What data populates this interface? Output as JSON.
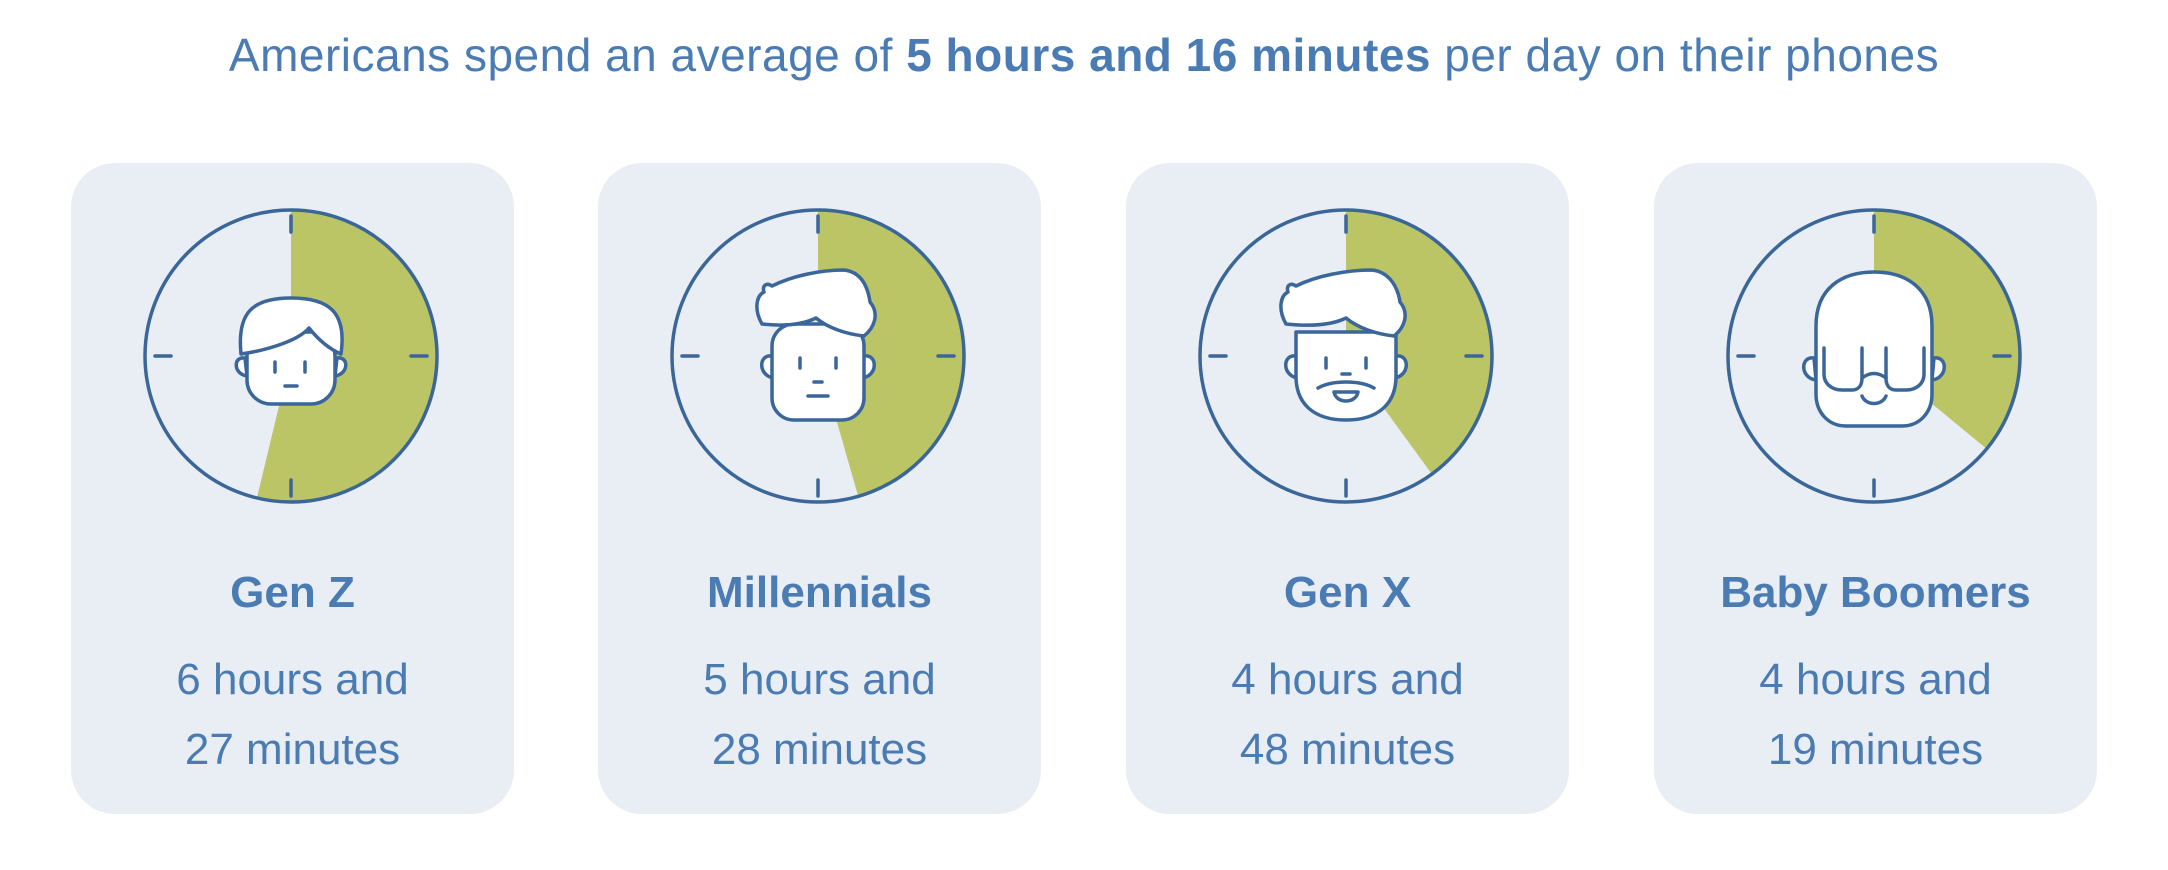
{
  "headline": {
    "prefix": "Americans spend an average of ",
    "bold": "5 hours and 16 minutes",
    "suffix": " per day on their phones"
  },
  "colors": {
    "text": "#4a7bb3",
    "card": "#e8eef4",
    "outline": "#3a6699",
    "wedge": "#bcc565"
  },
  "generations": [
    {
      "name": "Gen Z",
      "line1": "6 hours and",
      "line2": "27 minutes",
      "hours": 6,
      "minutes": 27,
      "icon": "young-face-icon"
    },
    {
      "name": "Millennials",
      "line1": "5 hours and",
      "line2": "28 minutes",
      "hours": 5,
      "minutes": 28,
      "icon": "quiff-face-icon"
    },
    {
      "name": "Gen X",
      "line1": "4 hours and",
      "line2": "48 minutes",
      "hours": 4,
      "minutes": 48,
      "icon": "bearded-face-icon"
    },
    {
      "name": "Baby Boomers",
      "line1": "4 hours and",
      "line2": "19 minutes",
      "hours": 4,
      "minutes": 19,
      "icon": "bald-glasses-face-icon"
    }
  ]
}
